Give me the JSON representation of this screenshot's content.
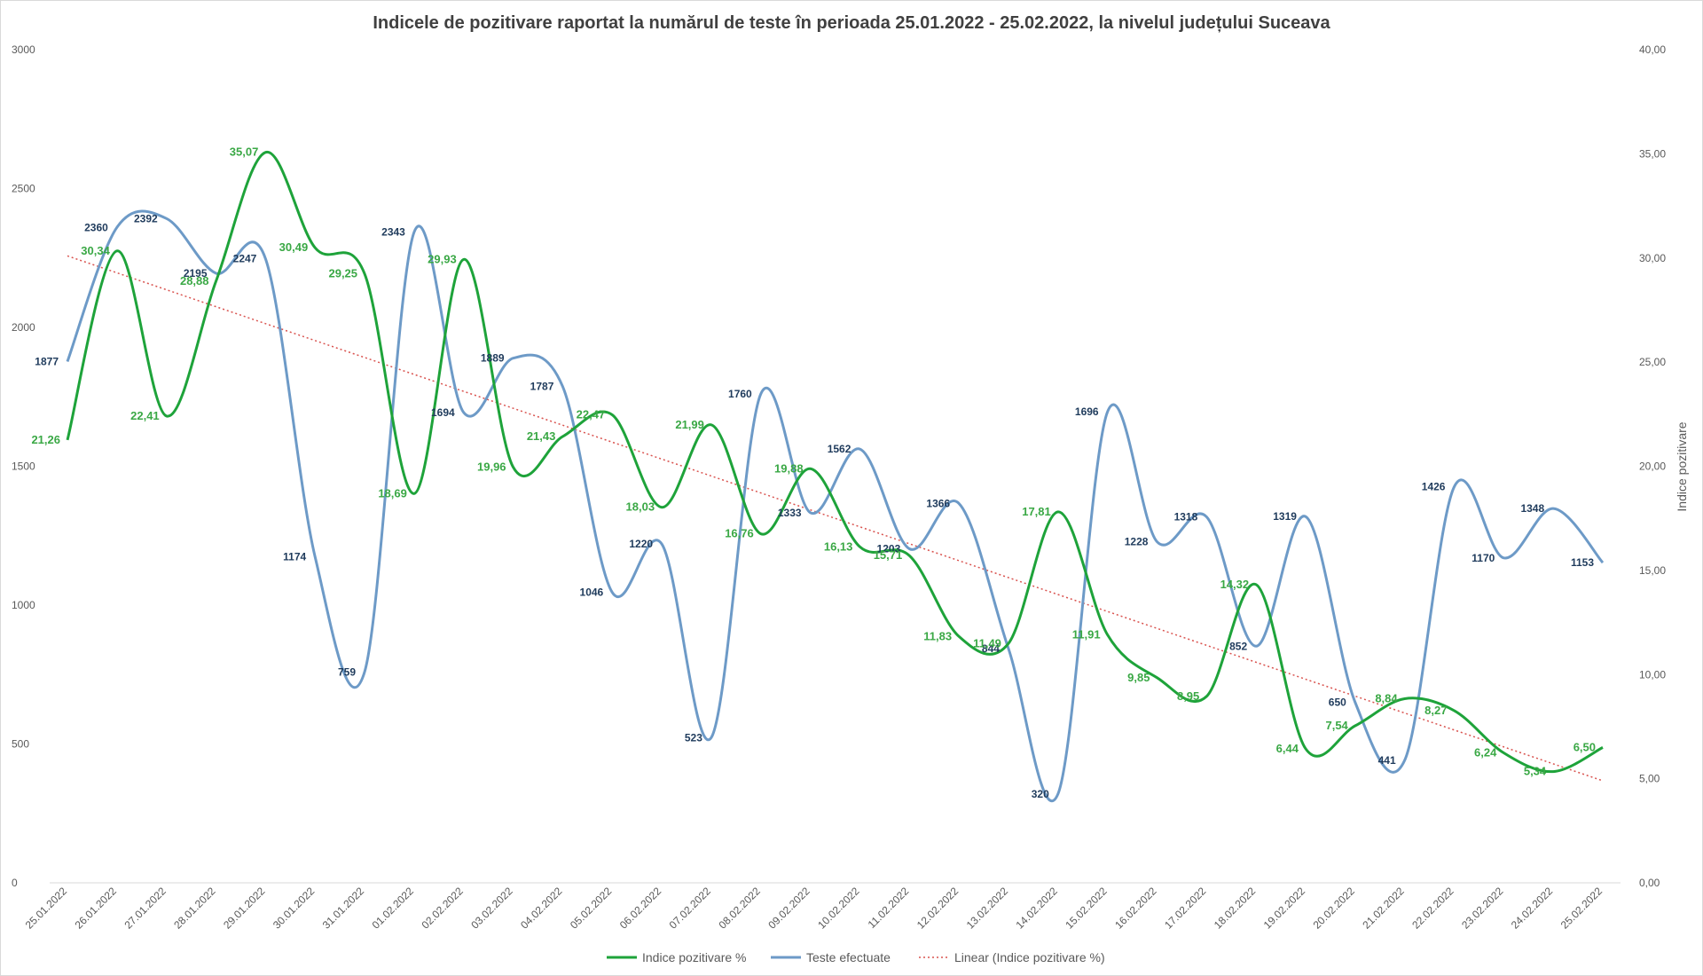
{
  "chart_data": {
    "type": "line",
    "title": "Indicele de pozitivare  raportat la numărul de teste în perioada  25.01.2022 - 25.02.2022, la nivelul județului  Suceava",
    "ylabel": "",
    "y2label": "Indice pozitivare",
    "ylim": [
      0,
      3000
    ],
    "y2lim": [
      0,
      40
    ],
    "yticks": [
      "0",
      "500",
      "1000",
      "1500",
      "2000",
      "2500",
      "3000"
    ],
    "y2ticks": [
      "0,00",
      "5,00",
      "10,00",
      "15,00",
      "20,00",
      "25,00",
      "30,00",
      "35,00",
      "40,00"
    ],
    "legend_position": "bottom",
    "grid": false,
    "categories": [
      "25.01.2022",
      "26.01.2022",
      "27.01.2022",
      "28.01.2022",
      "29.01.2022",
      "30.01.2022",
      "31.01.2022",
      "01.02.2022",
      "02.02.2022",
      "03.02.2022",
      "04.02.2022",
      "05.02.2022",
      "06.02.2022",
      "07.02.2022",
      "08.02.2022",
      "09.02.2022",
      "10.02.2022",
      "11.02.2022",
      "12.02.2022",
      "13.02.2022",
      "14.02.2022",
      "15.02.2022",
      "16.02.2022",
      "17.02.2022",
      "18.02.2022",
      "19.02.2022",
      "20.02.2022",
      "21.02.2022",
      "22.02.2022",
      "23.02.2022",
      "24.02.2022",
      "25.02.2022"
    ],
    "series": [
      {
        "name": "Indice pozitivare %",
        "axis": "right",
        "color": "#1ea33a",
        "values": [
          21.26,
          30.34,
          22.41,
          28.88,
          35.07,
          30.49,
          29.25,
          18.69,
          29.93,
          19.96,
          21.43,
          22.47,
          18.03,
          21.99,
          16.76,
          19.88,
          16.13,
          15.71,
          11.83,
          11.49,
          17.81,
          11.91,
          9.85,
          8.95,
          14.32,
          6.44,
          7.54,
          8.84,
          8.27,
          6.24,
          5.34,
          6.5
        ],
        "labels": [
          "21,26",
          "30,34",
          "22,41",
          "28,88",
          "35,07",
          "30,49",
          "29,25",
          "18,69",
          "29,93",
          "19,96",
          "21,43",
          "22,47",
          "18,03",
          "21,99",
          "16,76",
          "19,88",
          "16,13",
          "15,71",
          "11,83",
          "11,49",
          "17,81",
          "11,91",
          "9,85",
          "8,95",
          "14,32",
          "6,44",
          "7,54",
          "8,84",
          "8,27",
          "6,24",
          "5,34",
          "6,50"
        ]
      },
      {
        "name": "Teste efectuate",
        "axis": "left",
        "color": "#6d9ac7",
        "values": [
          1877,
          2360,
          2392,
          2195,
          2247,
          1174,
          759,
          2343,
          1694,
          1889,
          1787,
          1046,
          1220,
          523,
          1760,
          1333,
          1562,
          1203,
          1366,
          844,
          320,
          1696,
          1228,
          1318,
          852,
          1319,
          650,
          441,
          1426,
          1170,
          1348,
          1153
        ],
        "labels": [
          "1877",
          "2360",
          "2392",
          "2195",
          "2247",
          "1174",
          "759",
          "2343",
          "1694",
          "1889",
          "1787",
          "1046",
          "1220",
          "523",
          "1760",
          "1333",
          "1562",
          "1203",
          "1366",
          "844",
          "320",
          "1696",
          "1228",
          "1318",
          "852",
          "1319",
          "650",
          "441",
          "1426",
          "1170",
          "1348",
          "1153"
        ]
      },
      {
        "name": "Linear (Indice pozitivare %)",
        "axis": "right",
        "color": "#d9534f",
        "style": "dotted",
        "trend": {
          "start": 30.1,
          "end": 4.9
        }
      }
    ]
  }
}
